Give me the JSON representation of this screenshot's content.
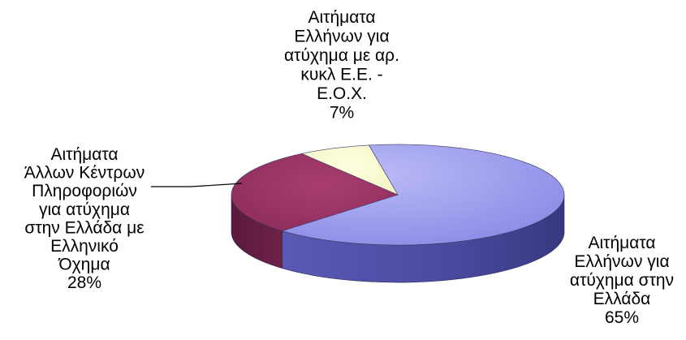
{
  "chart_data": {
    "type": "pie",
    "title": "",
    "style": "3d",
    "legend": "none",
    "slices": [
      {
        "lines": [
          "Αιτήματα",
          "Ελλήνων για",
          "ατύχημα στην",
          "Ελλάδα",
          "65%"
        ],
        "value": 65,
        "color": "#9999ee"
      },
      {
        "lines": [
          "Αιτήματα",
          "Άλλων Κέντρων",
          "Πληροφοριών",
          "για ατύχημα",
          "στην Ελλάδα με",
          "Ελληνικό",
          "Όχημα",
          "28%"
        ],
        "value": 28,
        "color": "#993366"
      },
      {
        "lines": [
          "Αιτήματα",
          "Ελλήνων για",
          "ατύχημα με αρ.",
          "κυκλ Ε.Ε. -",
          "Ε.Ο.Χ.",
          "7%"
        ],
        "value": 7,
        "color": "#ffffcc"
      }
    ]
  }
}
